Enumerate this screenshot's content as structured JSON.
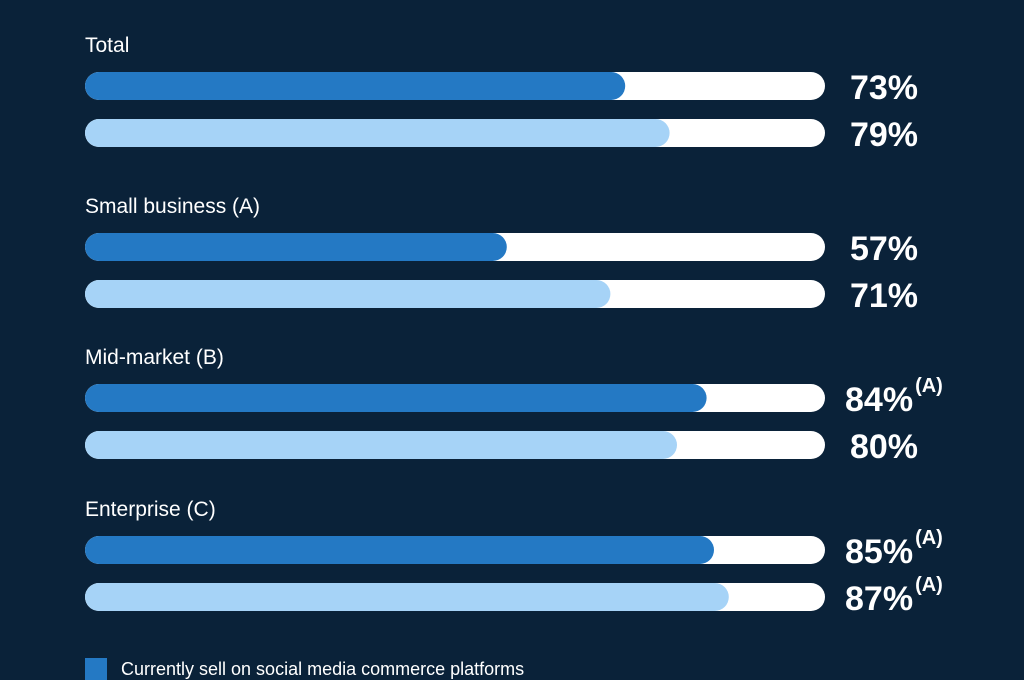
{
  "chart_data": {
    "type": "bar",
    "orientation": "horizontal",
    "categories": [
      "Total",
      "Small business (A)",
      "Mid-market (B)",
      "Enterprise (C)"
    ],
    "series": [
      {
        "name": "Currently sell on social media commerce platforms",
        "values": [
          73,
          57,
          84,
          85
        ],
        "labels": [
          "73%",
          "57%",
          "84%",
          "85%"
        ],
        "superscripts": [
          "",
          "",
          "(A)",
          "(A)"
        ],
        "color": "#2479c4"
      },
      {
        "values": [
          79,
          71,
          80,
          87
        ],
        "labels": [
          "79%",
          "71%",
          "80%",
          "87%"
        ],
        "superscripts": [
          "",
          "",
          "",
          "(A)"
        ],
        "color": "#a6d3f7"
      }
    ],
    "xlim": [
      0,
      100
    ],
    "track_color": "#ffffff",
    "background": "#0a2239"
  },
  "legend": {
    "items": [
      {
        "label": "Currently sell on social media commerce platforms",
        "color": "#2479c4"
      }
    ]
  }
}
